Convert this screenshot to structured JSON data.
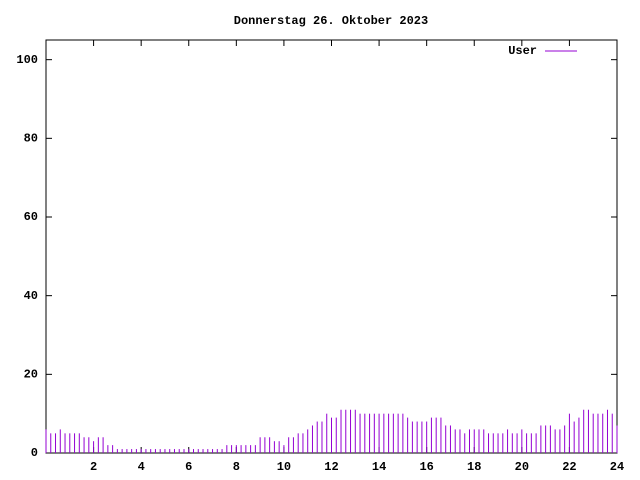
{
  "chart_data": {
    "type": "impulse",
    "title": "Donnerstag 26. Oktober 2023",
    "x": [
      0,
      0.2,
      0.4,
      0.6,
      0.8,
      1,
      1.2,
      1.4,
      1.6,
      1.8,
      2,
      2.2,
      2.4,
      2.6,
      2.8,
      3,
      3.2,
      3.4,
      3.6,
      3.8,
      4,
      4.2,
      4.4,
      4.6,
      4.8,
      5,
      5.2,
      5.4,
      5.6,
      5.8,
      6,
      6.2,
      6.4,
      6.6,
      6.8,
      7,
      7.2,
      7.4,
      7.6,
      7.8,
      8,
      8.2,
      8.4,
      8.6,
      8.8,
      9,
      9.2,
      9.4,
      9.6,
      9.8,
      10,
      10.2,
      10.4,
      10.6,
      10.8,
      11,
      11.2,
      11.4,
      11.6,
      11.8,
      12,
      12.2,
      12.4,
      12.6,
      12.8,
      13,
      13.2,
      13.4,
      13.6,
      13.8,
      14,
      14.2,
      14.4,
      14.6,
      14.8,
      15,
      15.2,
      15.4,
      15.6,
      15.8,
      16,
      16.2,
      16.4,
      16.6,
      16.8,
      17,
      17.2,
      17.4,
      17.6,
      17.8,
      18,
      18.2,
      18.4,
      18.6,
      18.8,
      19,
      19.2,
      19.4,
      19.6,
      19.8,
      20,
      20.2,
      20.4,
      20.6,
      20.8,
      21,
      21.2,
      21.4,
      21.6,
      21.8,
      22,
      22.2,
      22.4,
      22.6,
      22.8,
      23,
      23.2,
      23.4,
      23.6,
      23.8,
      24
    ],
    "series": [
      {
        "name": "User",
        "color": "#9400d3",
        "values": [
          6,
          5,
          5,
          6,
          5,
          5,
          5,
          5,
          4,
          4,
          3,
          4,
          4,
          2,
          2,
          1,
          1,
          1,
          1,
          1,
          1,
          1,
          1,
          1,
          1,
          1,
          1,
          1,
          1,
          1,
          1,
          1,
          1,
          1,
          1,
          1,
          1,
          1,
          2,
          2,
          2,
          2,
          2,
          2,
          2,
          4,
          4,
          4,
          3,
          3,
          2,
          4,
          4,
          5,
          5,
          6,
          7,
          8,
          8,
          10,
          9,
          9,
          11,
          11,
          11,
          11,
          10,
          10,
          10,
          10,
          10,
          10,
          10,
          10,
          10,
          10,
          9,
          8,
          8,
          8,
          8,
          9,
          9,
          9,
          7,
          7,
          6,
          6,
          5,
          6,
          6,
          6,
          6,
          5,
          5,
          5,
          5,
          6,
          5,
          5,
          6,
          5,
          5,
          5,
          7,
          7,
          7,
          6,
          6,
          7,
          10,
          8,
          9,
          11,
          11,
          10,
          10,
          10,
          11,
          10,
          7
        ]
      }
    ],
    "xlim": [
      0,
      24
    ],
    "xticks": [
      2,
      4,
      6,
      8,
      10,
      12,
      14,
      16,
      18,
      20,
      22,
      24
    ],
    "ylim": [
      0,
      105
    ],
    "yticks": [
      0,
      20,
      40,
      60,
      80,
      100
    ],
    "legend": "top-right"
  }
}
